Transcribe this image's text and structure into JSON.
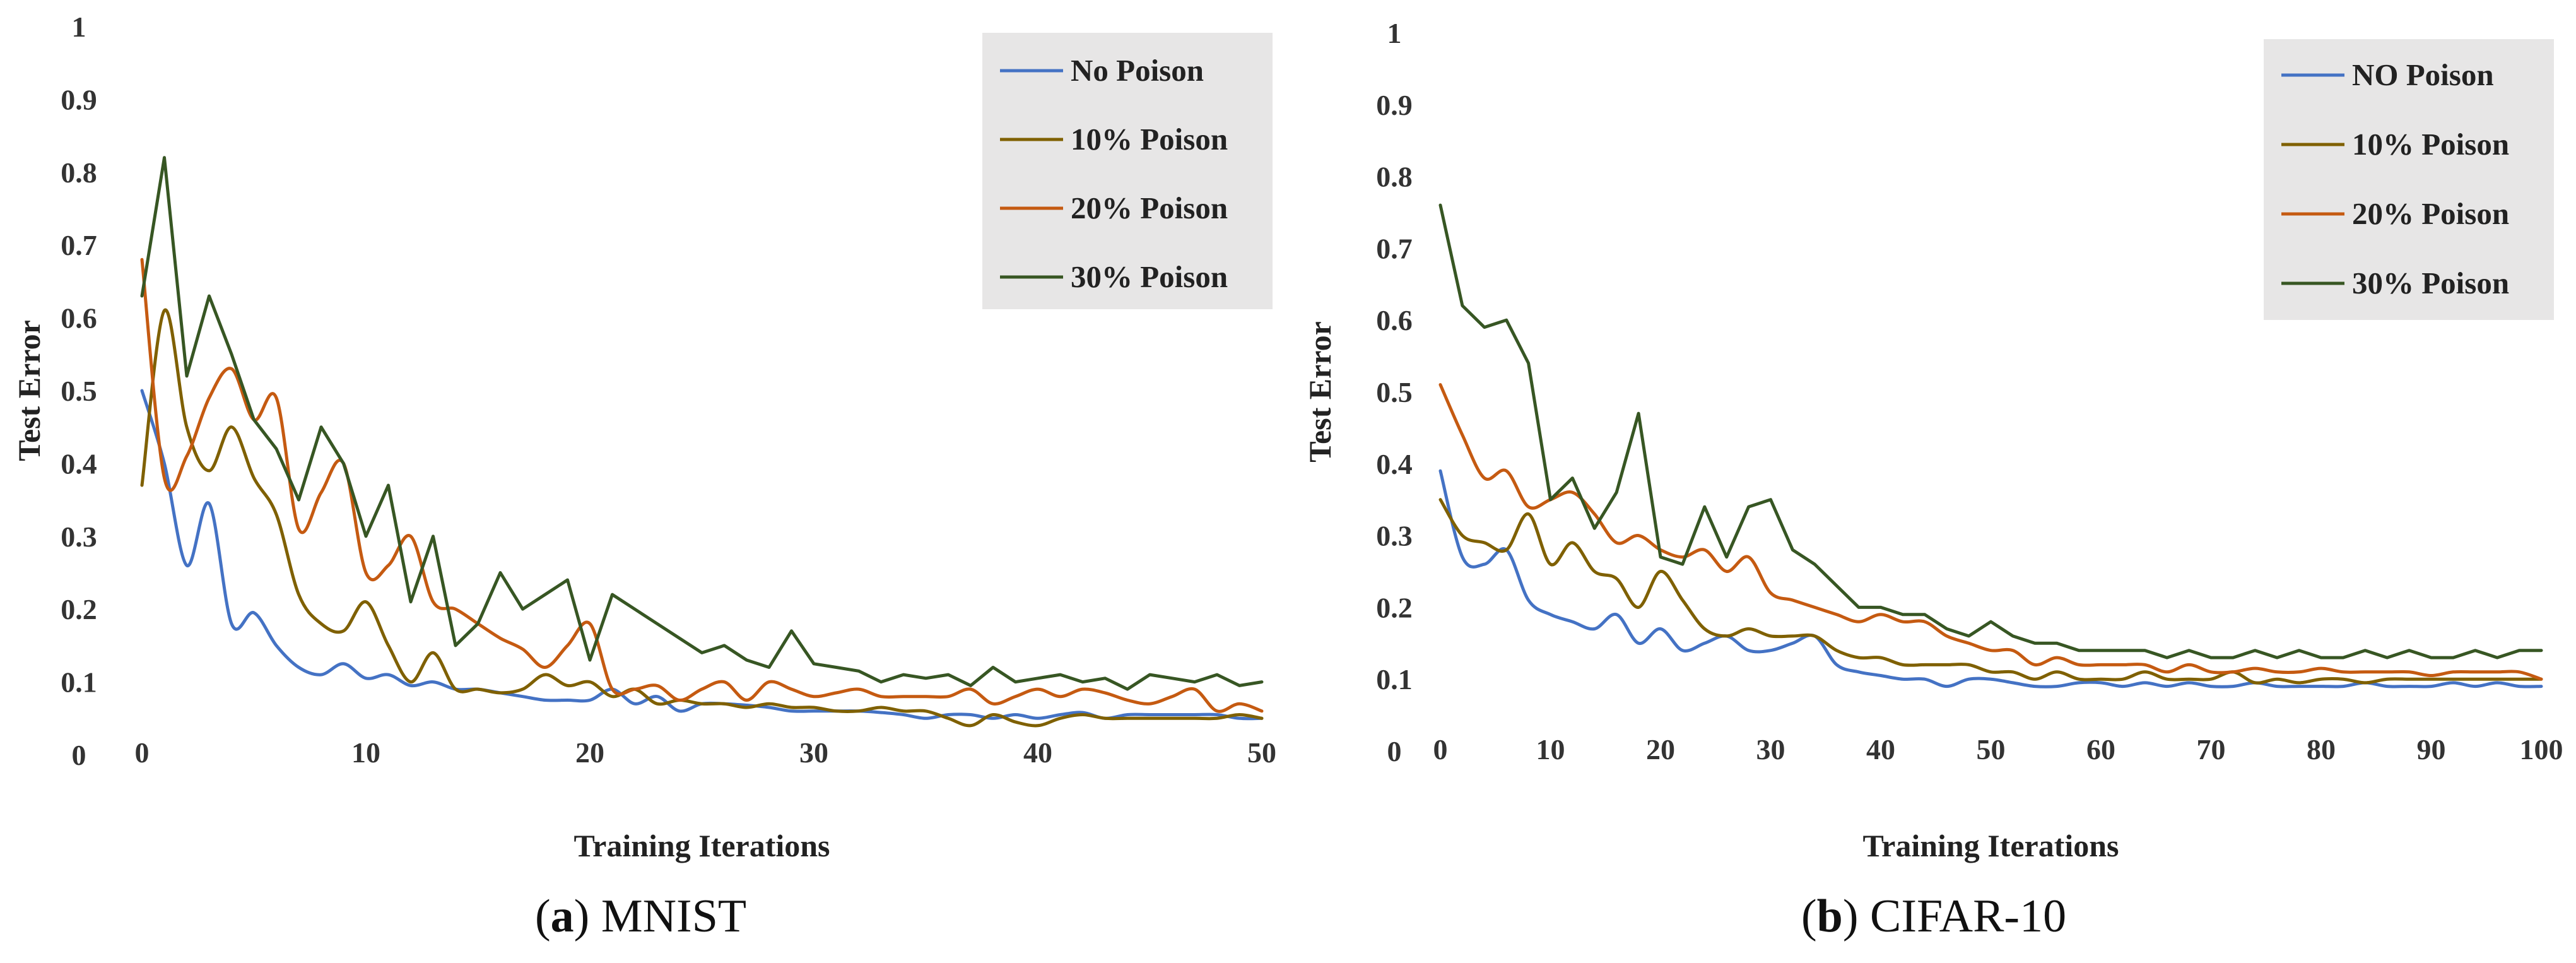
{
  "chart_data": [
    {
      "type": "line",
      "panel_label": "a",
      "caption": "MNIST",
      "title": "",
      "xlabel": "Training Iterations",
      "ylabel": "Test Error",
      "xlim": [
        0,
        50
      ],
      "ylim": [
        0,
        1
      ],
      "x_ticks": [
        "0",
        "10",
        "20",
        "30",
        "40",
        "50"
      ],
      "y_ticks": [
        "0",
        "0.1",
        "0.2",
        "0.3",
        "0.4",
        "0.5",
        "0.6",
        "0.7",
        "0.8",
        "0.9",
        "1"
      ],
      "grid": false,
      "legend_position": "top-right",
      "x": [
        0,
        1,
        2,
        3,
        4,
        5,
        6,
        7,
        8,
        9,
        10,
        11,
        12,
        13,
        14,
        15,
        16,
        17,
        18,
        19,
        20,
        21,
        22,
        23,
        24,
        25,
        26,
        27,
        28,
        29,
        30,
        31,
        32,
        33,
        34,
        35,
        36,
        37,
        38,
        39,
        40,
        41,
        42,
        43,
        44,
        45,
        46,
        47,
        48,
        49,
        50
      ],
      "series": [
        {
          "name": "No Poison",
          "color": "#4472C4",
          "smooth": true,
          "values": [
            0.5,
            0.4,
            0.26,
            0.345,
            0.18,
            0.195,
            0.15,
            0.12,
            0.11,
            0.125,
            0.105,
            0.11,
            0.095,
            0.1,
            0.09,
            0.09,
            0.085,
            0.08,
            0.075,
            0.075,
            0.075,
            0.09,
            0.07,
            0.08,
            0.06,
            0.07,
            0.07,
            0.068,
            0.065,
            0.06,
            0.06,
            0.06,
            0.06,
            0.058,
            0.055,
            0.05,
            0.055,
            0.055,
            0.05,
            0.055,
            0.05,
            0.055,
            0.058,
            0.05,
            0.055,
            0.055,
            0.055,
            0.055,
            0.055,
            0.05,
            0.05
          ]
        },
        {
          "name": "10% Poison",
          "color": "#7F6000",
          "smooth": true,
          "values": [
            0.37,
            0.61,
            0.45,
            0.39,
            0.45,
            0.38,
            0.33,
            0.22,
            0.18,
            0.17,
            0.21,
            0.15,
            0.1,
            0.14,
            0.09,
            0.09,
            0.085,
            0.09,
            0.11,
            0.095,
            0.1,
            0.08,
            0.09,
            0.07,
            0.075,
            0.07,
            0.07,
            0.065,
            0.07,
            0.065,
            0.065,
            0.06,
            0.06,
            0.065,
            0.06,
            0.06,
            0.05,
            0.04,
            0.055,
            0.045,
            0.04,
            0.05,
            0.055,
            0.05,
            0.05,
            0.05,
            0.05,
            0.05,
            0.05,
            0.055,
            0.05
          ]
        },
        {
          "name": "20% Poison",
          "color": "#C55A11",
          "smooth": true,
          "values": [
            0.68,
            0.38,
            0.41,
            0.49,
            0.53,
            0.46,
            0.49,
            0.31,
            0.36,
            0.4,
            0.25,
            0.26,
            0.3,
            0.21,
            0.2,
            0.18,
            0.16,
            0.145,
            0.12,
            0.15,
            0.18,
            0.09,
            0.09,
            0.095,
            0.075,
            0.09,
            0.1,
            0.075,
            0.1,
            0.09,
            0.08,
            0.085,
            0.09,
            0.08,
            0.08,
            0.08,
            0.08,
            0.09,
            0.07,
            0.08,
            0.09,
            0.08,
            0.09,
            0.085,
            0.075,
            0.07,
            0.08,
            0.09,
            0.06,
            0.07,
            0.06
          ]
        },
        {
          "name": "30% Poison",
          "color": "#375623",
          "smooth": false,
          "values": [
            0.63,
            0.82,
            0.52,
            0.63,
            0.55,
            0.46,
            0.42,
            0.35,
            0.45,
            0.4,
            0.3,
            0.37,
            0.21,
            0.3,
            0.15,
            0.18,
            0.25,
            0.2,
            0.22,
            0.24,
            0.13,
            0.22,
            0.2,
            0.18,
            0.16,
            0.14,
            0.15,
            0.13,
            0.12,
            0.17,
            0.125,
            0.12,
            0.115,
            0.1,
            0.11,
            0.105,
            0.11,
            0.095,
            0.12,
            0.1,
            0.105,
            0.11,
            0.1,
            0.105,
            0.09,
            0.11,
            0.105,
            0.1,
            0.11,
            0.095,
            0.1
          ]
        }
      ]
    },
    {
      "type": "line",
      "panel_label": "b",
      "caption": "CIFAR-10",
      "title": "",
      "xlabel": "Training Iterations",
      "ylabel": "Test Error",
      "xlim": [
        0,
        100
      ],
      "ylim": [
        0,
        1
      ],
      "x_ticks": [
        "0",
        "10",
        "20",
        "30",
        "40",
        "50",
        "60",
        "70",
        "80",
        "90",
        "100"
      ],
      "y_ticks": [
        "0",
        "0.1",
        "0.2",
        "0.3",
        "0.4",
        "0.5",
        "0.6",
        "0.7",
        "0.8",
        "0.9",
        "1"
      ],
      "grid": false,
      "legend_position": "top-right",
      "x": [
        0,
        2,
        4,
        6,
        8,
        10,
        12,
        14,
        16,
        18,
        20,
        22,
        24,
        26,
        28,
        30,
        32,
        34,
        36,
        38,
        40,
        42,
        44,
        46,
        48,
        50,
        52,
        54,
        56,
        58,
        60,
        62,
        64,
        66,
        68,
        70,
        72,
        74,
        76,
        78,
        80,
        82,
        84,
        86,
        88,
        90,
        92,
        94,
        96,
        98,
        100
      ],
      "series": [
        {
          "name": "NO Poison",
          "color": "#4472C4",
          "smooth": true,
          "values": [
            0.39,
            0.27,
            0.26,
            0.28,
            0.21,
            0.19,
            0.18,
            0.17,
            0.19,
            0.15,
            0.17,
            0.14,
            0.15,
            0.16,
            0.14,
            0.14,
            0.15,
            0.16,
            0.12,
            0.11,
            0.105,
            0.1,
            0.1,
            0.09,
            0.1,
            0.1,
            0.095,
            0.09,
            0.09,
            0.095,
            0.095,
            0.09,
            0.095,
            0.09,
            0.095,
            0.09,
            0.09,
            0.095,
            0.09,
            0.09,
            0.09,
            0.09,
            0.095,
            0.09,
            0.09,
            0.09,
            0.095,
            0.09,
            0.095,
            0.09,
            0.09
          ]
        },
        {
          "name": "10% Poison",
          "color": "#7F6000",
          "smooth": true,
          "values": [
            0.35,
            0.3,
            0.29,
            0.28,
            0.33,
            0.26,
            0.29,
            0.25,
            0.24,
            0.2,
            0.25,
            0.21,
            0.17,
            0.16,
            0.17,
            0.16,
            0.16,
            0.16,
            0.14,
            0.13,
            0.13,
            0.12,
            0.12,
            0.12,
            0.12,
            0.11,
            0.11,
            0.1,
            0.11,
            0.1,
            0.1,
            0.1,
            0.11,
            0.1,
            0.1,
            0.1,
            0.11,
            0.095,
            0.1,
            0.095,
            0.1,
            0.1,
            0.095,
            0.1,
            0.1,
            0.1,
            0.1,
            0.1,
            0.1,
            0.1,
            0.1
          ]
        },
        {
          "name": "20% Poison",
          "color": "#C55A11",
          "smooth": true,
          "values": [
            0.51,
            0.44,
            0.38,
            0.39,
            0.34,
            0.35,
            0.36,
            0.33,
            0.29,
            0.3,
            0.28,
            0.27,
            0.28,
            0.25,
            0.27,
            0.22,
            0.21,
            0.2,
            0.19,
            0.18,
            0.19,
            0.18,
            0.18,
            0.16,
            0.15,
            0.14,
            0.14,
            0.12,
            0.13,
            0.12,
            0.12,
            0.12,
            0.12,
            0.11,
            0.12,
            0.11,
            0.11,
            0.115,
            0.11,
            0.11,
            0.115,
            0.11,
            0.11,
            0.11,
            0.11,
            0.105,
            0.11,
            0.11,
            0.11,
            0.11,
            0.1
          ]
        },
        {
          "name": "30% Poison",
          "color": "#375623",
          "smooth": false,
          "values": [
            0.76,
            0.62,
            0.59,
            0.6,
            0.54,
            0.35,
            0.38,
            0.31,
            0.36,
            0.47,
            0.27,
            0.26,
            0.34,
            0.27,
            0.34,
            0.35,
            0.28,
            0.26,
            0.23,
            0.2,
            0.2,
            0.19,
            0.19,
            0.17,
            0.16,
            0.18,
            0.16,
            0.15,
            0.15,
            0.14,
            0.14,
            0.14,
            0.14,
            0.13,
            0.14,
            0.13,
            0.13,
            0.14,
            0.13,
            0.14,
            0.13,
            0.13,
            0.14,
            0.13,
            0.14,
            0.13,
            0.13,
            0.14,
            0.13,
            0.14,
            0.14
          ]
        }
      ]
    }
  ]
}
